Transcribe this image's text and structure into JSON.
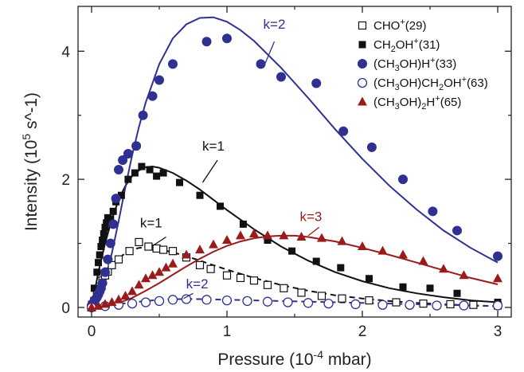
{
  "chart_data": {
    "type": "scatter",
    "xlabel": "Pressure (10^-4 mbar)",
    "ylabel": "Intensity (10^5 s^-1)",
    "xlim": [
      -0.1,
      3.1
    ],
    "ylim": [
      -0.15,
      4.7
    ],
    "x_ticks": [
      "0",
      "1",
      "2",
      "3"
    ],
    "y_ticks": [
      "0",
      "2",
      "4"
    ],
    "legend_position": "top-right",
    "legend": [
      {
        "label": "CHO",
        "sup": "+",
        "sub": "",
        "tail": "(29)",
        "marker": "open-square",
        "color": "#111111"
      },
      {
        "label": "CH",
        "sub": "2",
        "mid": "OH",
        "sup": "+",
        "tail": "(31)",
        "marker": "filled-square",
        "color": "#111111"
      },
      {
        "label": "(CH",
        "sub": "3",
        "mid": "OH)H",
        "sup": "+",
        "tail": "(33)",
        "marker": "filled-circle",
        "color": "#2e3192"
      },
      {
        "label": "(CH",
        "sub": "3",
        "mid": "OH)CH",
        "sub2": "2",
        "mid2": "OH",
        "sup": "+",
        "tail": "(63)",
        "marker": "open-circle",
        "color": "#2e3192"
      },
      {
        "label": "(CH",
        "sub": "3",
        "mid": "OH)",
        "sub2": "2",
        "mid2": "H",
        "sup": "+",
        "tail": "(65)",
        "marker": "filled-triangle",
        "color": "#9b1b1b"
      }
    ],
    "series": [
      {
        "marker": "open-square",
        "color": "#111111",
        "x": [
          0.0,
          0.02,
          0.04,
          0.06,
          0.08,
          0.1,
          0.12,
          0.15,
          0.2,
          0.28,
          0.35,
          0.42,
          0.48,
          0.53,
          0.6,
          0.7,
          0.8,
          0.88,
          1.0,
          1.1,
          1.2,
          1.3,
          1.42,
          1.55,
          1.7,
          1.85,
          2.05,
          2.25,
          2.45,
          2.65,
          2.82,
          3.0
        ],
        "y": [
          0.0,
          0.1,
          0.22,
          0.32,
          0.42,
          0.5,
          0.56,
          0.66,
          0.75,
          0.88,
          1.02,
          0.95,
          0.92,
          0.9,
          0.88,
          0.78,
          0.66,
          0.6,
          0.5,
          0.46,
          0.42,
          0.35,
          0.3,
          0.23,
          0.18,
          0.14,
          0.11,
          0.08,
          0.06,
          0.05,
          0.04,
          0.03
        ]
      },
      {
        "marker": "filled-square",
        "color": "#111111",
        "x": [
          0.0,
          0.02,
          0.04,
          0.05,
          0.06,
          0.07,
          0.08,
          0.09,
          0.1,
          0.11,
          0.12,
          0.14,
          0.16,
          0.18,
          0.22,
          0.27,
          0.32,
          0.37,
          0.43,
          0.48,
          0.53,
          0.65,
          0.8,
          0.95,
          1.12,
          1.3,
          1.48,
          1.66,
          1.84,
          2.05,
          2.3,
          2.5,
          2.7,
          3.0
        ],
        "y": [
          0.05,
          0.3,
          0.55,
          0.7,
          0.82,
          0.95,
          1.05,
          1.15,
          1.25,
          1.32,
          1.4,
          1.38,
          1.5,
          1.65,
          1.75,
          2.0,
          2.1,
          2.2,
          2.15,
          2.05,
          2.1,
          1.95,
          1.75,
          1.58,
          1.3,
          1.05,
          0.88,
          0.72,
          0.62,
          0.45,
          0.32,
          0.3,
          0.22,
          0.08
        ]
      },
      {
        "marker": "filled-circle",
        "color": "#2e3192",
        "x": [
          0.0,
          0.01,
          0.02,
          0.03,
          0.04,
          0.05,
          0.06,
          0.07,
          0.08,
          0.1,
          0.12,
          0.14,
          0.16,
          0.18,
          0.2,
          0.23,
          0.27,
          0.33,
          0.38,
          0.45,
          0.5,
          0.6,
          0.85,
          1.0,
          1.25,
          1.4,
          1.66,
          1.86,
          2.07,
          2.3,
          2.52,
          2.7,
          3.0
        ],
        "y": [
          0.03,
          0.06,
          0.1,
          0.13,
          0.16,
          0.2,
          0.25,
          0.3,
          0.38,
          0.55,
          0.75,
          1.0,
          1.3,
          1.7,
          2.15,
          2.3,
          2.4,
          2.52,
          3.0,
          3.3,
          3.55,
          3.8,
          4.15,
          4.2,
          3.8,
          3.6,
          3.5,
          2.75,
          2.5,
          2.0,
          1.5,
          1.2,
          0.8
        ]
      },
      {
        "marker": "open-circle",
        "color": "#2e3192",
        "x": [
          0.0,
          0.1,
          0.2,
          0.3,
          0.4,
          0.5,
          0.6,
          0.7,
          0.85,
          1.0,
          1.15,
          1.3,
          1.45,
          1.6,
          1.75,
          1.95,
          2.15,
          2.35,
          2.55,
          2.75,
          3.0
        ],
        "y": [
          0.0,
          0.02,
          0.04,
          0.06,
          0.08,
          0.1,
          0.12,
          0.13,
          0.12,
          0.11,
          0.1,
          0.09,
          0.08,
          0.07,
          0.06,
          0.05,
          0.04,
          0.04,
          0.03,
          0.03,
          0.03
        ]
      },
      {
        "marker": "filled-triangle",
        "color": "#9b1b1b",
        "x": [
          0.0,
          0.05,
          0.1,
          0.15,
          0.2,
          0.25,
          0.3,
          0.35,
          0.4,
          0.45,
          0.5,
          0.55,
          0.6,
          0.7,
          0.8,
          0.9,
          1.0,
          1.1,
          1.2,
          1.3,
          1.42,
          1.55,
          1.7,
          1.85,
          2.0,
          2.15,
          2.3,
          2.45,
          2.6,
          2.75,
          3.0
        ],
        "y": [
          0.0,
          0.02,
          0.05,
          0.08,
          0.12,
          0.18,
          0.25,
          0.35,
          0.45,
          0.5,
          0.55,
          0.62,
          0.68,
          0.82,
          0.9,
          0.98,
          1.05,
          1.12,
          1.15,
          1.12,
          1.12,
          1.1,
          1.08,
          1.03,
          0.95,
          0.88,
          0.82,
          0.72,
          0.6,
          0.5,
          0.45
        ]
      }
    ],
    "fit_curves": [
      {
        "label": "k=1",
        "color": "#111111",
        "dash": false,
        "x": [
          0.0,
          0.05,
          0.1,
          0.15,
          0.2,
          0.25,
          0.3,
          0.35,
          0.4,
          0.45,
          0.5,
          0.6,
          0.7,
          0.8,
          0.9,
          1.0,
          1.2,
          1.4,
          1.6,
          1.8,
          2.0,
          2.2,
          2.4,
          2.6,
          2.8,
          3.0
        ],
        "y": [
          0.0,
          0.55,
          1.0,
          1.38,
          1.68,
          1.9,
          2.05,
          2.14,
          2.19,
          2.2,
          2.18,
          2.1,
          1.98,
          1.84,
          1.68,
          1.52,
          1.22,
          0.95,
          0.73,
          0.55,
          0.41,
          0.3,
          0.22,
          0.16,
          0.11,
          0.08
        ]
      },
      {
        "label": "k=1",
        "color": "#111111",
        "dash": true,
        "x": [
          0.0,
          0.05,
          0.1,
          0.15,
          0.2,
          0.25,
          0.3,
          0.35,
          0.4,
          0.45,
          0.5,
          0.6,
          0.7,
          0.8,
          0.9,
          1.0,
          1.2,
          1.4,
          1.6,
          1.8,
          2.0,
          2.2,
          2.4,
          2.6,
          2.8,
          3.0
        ],
        "y": [
          0.0,
          0.25,
          0.46,
          0.63,
          0.76,
          0.85,
          0.9,
          0.93,
          0.94,
          0.93,
          0.91,
          0.86,
          0.8,
          0.73,
          0.66,
          0.59,
          0.46,
          0.35,
          0.26,
          0.19,
          0.14,
          0.1,
          0.07,
          0.05,
          0.03,
          0.02
        ]
      },
      {
        "label": "k=2",
        "color": "#2e3192",
        "dash": false,
        "x": [
          0.0,
          0.05,
          0.1,
          0.15,
          0.2,
          0.25,
          0.3,
          0.35,
          0.4,
          0.5,
          0.6,
          0.7,
          0.8,
          0.9,
          1.0,
          1.1,
          1.2,
          1.4,
          1.6,
          1.8,
          2.0,
          2.2,
          2.4,
          2.6,
          2.8,
          3.0
        ],
        "y": [
          0.0,
          0.12,
          0.42,
          0.85,
          1.35,
          1.88,
          2.38,
          2.82,
          3.2,
          3.8,
          4.2,
          4.42,
          4.52,
          4.53,
          4.46,
          4.33,
          4.16,
          3.74,
          3.27,
          2.78,
          2.32,
          1.9,
          1.53,
          1.2,
          0.93,
          0.7
        ]
      },
      {
        "label": "k=2",
        "color": "#2e3192",
        "dash": true,
        "x": [
          0.0,
          0.1,
          0.2,
          0.3,
          0.4,
          0.5,
          0.6,
          0.7,
          0.8,
          1.0,
          1.2,
          1.4,
          1.6,
          1.8,
          2.0,
          2.2,
          2.4,
          2.6,
          2.8,
          3.0
        ],
        "y": [
          0.0,
          0.02,
          0.05,
          0.08,
          0.1,
          0.12,
          0.13,
          0.13,
          0.13,
          0.12,
          0.11,
          0.1,
          0.09,
          0.08,
          0.07,
          0.06,
          0.05,
          0.04,
          0.03,
          0.02
        ]
      },
      {
        "label": "k=3",
        "color": "#9b1b1b",
        "dash": false,
        "x": [
          0.0,
          0.1,
          0.2,
          0.3,
          0.4,
          0.5,
          0.6,
          0.7,
          0.8,
          0.9,
          1.0,
          1.1,
          1.2,
          1.3,
          1.4,
          1.5,
          1.6,
          1.8,
          2.0,
          2.2,
          2.4,
          2.6,
          2.8,
          3.0
        ],
        "y": [
          0.0,
          0.02,
          0.07,
          0.15,
          0.26,
          0.38,
          0.51,
          0.64,
          0.76,
          0.87,
          0.96,
          1.03,
          1.08,
          1.11,
          1.12,
          1.12,
          1.1,
          1.03,
          0.93,
          0.82,
          0.7,
          0.58,
          0.46,
          0.36
        ]
      }
    ],
    "annotations": [
      {
        "text": "k=2",
        "color": "#2e3192",
        "x": 1.35,
        "y": 4.35,
        "ax": 1.35,
        "ay": 4.15,
        "bx": 1.28,
        "by": 3.8
      },
      {
        "text": "k=1",
        "color": "#111111",
        "x": 0.9,
        "y": 2.45,
        "ax": 0.93,
        "ay": 2.3,
        "bx": 0.82,
        "by": 1.95
      },
      {
        "text": "k=1",
        "color": "#111111",
        "x": 0.44,
        "y": 1.25,
        "ax": 0.55,
        "ay": 1.1,
        "bx": 0.45,
        "by": 0.96
      },
      {
        "text": "k=3",
        "color": "#9b1b1b",
        "x": 1.62,
        "y": 1.35,
        "ax": 1.68,
        "ay": 1.25,
        "bx": 1.6,
        "by": 1.12
      },
      {
        "text": "k=2",
        "color": "#2e3192",
        "x": 0.78,
        "y": 0.3,
        "ax": 0.75,
        "ay": 0.22,
        "bx": 0.68,
        "by": 0.14
      }
    ]
  }
}
